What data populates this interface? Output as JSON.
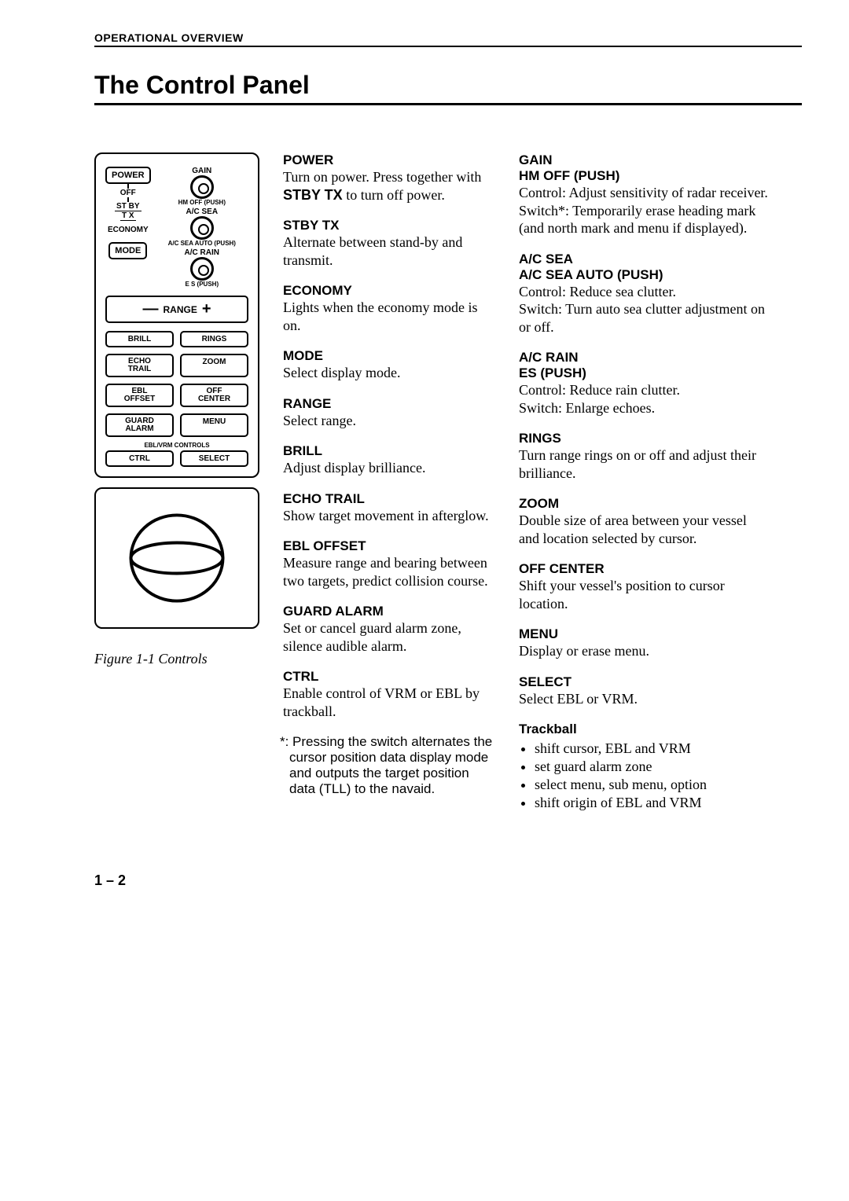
{
  "header": "OPERATIONAL OVERVIEW",
  "title": "The Control Panel",
  "page_number": "1 – 2",
  "figure": {
    "caption": "Figure 1-1 Controls",
    "dial1_top": "GAIN",
    "dial1_bottom": "HM OFF (PUSH)",
    "dial2_top": "A/C SEA",
    "dial2_bottom": "A/C SEA AUTO (PUSH)",
    "dial3_top": "A/C RAIN",
    "dial3_bottom": "E S (PUSH)",
    "switch": {
      "power": "POWER",
      "off": "OFF",
      "stby": "ST BY",
      "tx": "T X",
      "economy": "ECONOMY"
    },
    "mode": "MODE",
    "range": "RANGE",
    "btns": {
      "brill": "BRILL",
      "rings": "RINGS",
      "echo": "ECHO",
      "trail": "TRAIL",
      "zoom": "ZOOM",
      "ebl": "EBL",
      "offset": "OFFSET",
      "off": "OFF",
      "center": "CENTER",
      "guard": "GUARD",
      "alarm": "ALARM",
      "menu": "MENU",
      "ctrl": "CTRL",
      "select": "SELECT"
    },
    "controls_label": "EBL/VRM CONTROLS"
  },
  "col2": [
    {
      "t": "POWER",
      "b": "Turn on power. Press together with <b>STBY TX</b> to turn off power."
    },
    {
      "t": "STBY TX",
      "b": "Alternate between stand-by and transmit."
    },
    {
      "t": "ECONOMY",
      "b": "Lights when the economy mode is on."
    },
    {
      "t": "MODE",
      "b": "Select display mode."
    },
    {
      "t": "RANGE",
      "b": "Select range."
    },
    {
      "t": "BRILL",
      "b": "Adjust display brilliance."
    },
    {
      "t": "ECHO TRAIL",
      "b": "Show target movement in afterglow."
    },
    {
      "t": "EBL OFFSET",
      "b": "Measure range and bearing between two targets, predict collision course."
    },
    {
      "t": "GUARD ALARM",
      "b": "Set or cancel guard alarm zone, silence audible alarm."
    },
    {
      "t": "CTRL",
      "b": "Enable control of VRM or EBL by trackball."
    }
  ],
  "footnote": "*: Pressing the switch alternates the cursor position data display mode and outputs the target position data (TLL) to the navaid.",
  "col3": [
    {
      "t": "GAIN",
      "s": "HM OFF (PUSH)",
      "b": "Control: Adjust sensitivity of radar receiver.<br>Switch*: Temporarily erase heading mark (and north mark and menu if displayed)."
    },
    {
      "t": "A/C SEA",
      "s": "A/C SEA AUTO (PUSH)",
      "b": "Control: Reduce sea clutter.<br>Switch: Turn auto sea clutter adjustment on or off."
    },
    {
      "t": "A/C RAIN",
      "s": "ES (PUSH)",
      "b": "Control: Reduce rain clutter.<br>Switch: Enlarge echoes."
    },
    {
      "t": "RINGS",
      "b": "Turn range rings on or off and adjust their brilliance."
    },
    {
      "t": "ZOOM",
      "b": "Double size of area between your vessel and location selected by cursor."
    },
    {
      "t": "OFF CENTER",
      "b": "Shift your vessel's position to cursor location."
    },
    {
      "t": "MENU",
      "b": "Display or erase menu."
    },
    {
      "t": "SELECT",
      "b": "Select EBL or VRM."
    }
  ],
  "trackball": {
    "title": "Trackball",
    "items": [
      "shift cursor, EBL and VRM",
      "set guard alarm zone",
      "select menu, sub menu, option",
      "shift origin of EBL and VRM"
    ]
  }
}
